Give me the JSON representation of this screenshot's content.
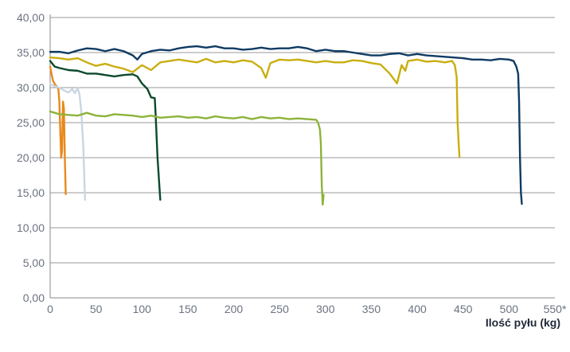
{
  "chart_data": {
    "type": "line",
    "xlabel": "Ilość pyłu (kg)",
    "ylabel": "",
    "xlim": [
      0,
      550
    ],
    "ylim": [
      0,
      40
    ],
    "grid": true,
    "x_ticks": [
      {
        "value": 0,
        "label": "0"
      },
      {
        "value": 50,
        "label": "50"
      },
      {
        "value": 100,
        "label": "100"
      },
      {
        "value": 150,
        "label": "150"
      },
      {
        "value": 200,
        "label": "200"
      },
      {
        "value": 250,
        "label": "250"
      },
      {
        "value": 300,
        "label": "300"
      },
      {
        "value": 350,
        "label": "350"
      },
      {
        "value": 400,
        "label": "400"
      },
      {
        "value": 450,
        "label": "450"
      },
      {
        "value": 500,
        "label": "500"
      },
      {
        "value": 550,
        "label": "550*"
      }
    ],
    "y_ticks": [
      {
        "value": 0,
        "label": "0,00"
      },
      {
        "value": 5,
        "label": "5,00"
      },
      {
        "value": 10,
        "label": "10,00"
      },
      {
        "value": 15,
        "label": "15,00"
      },
      {
        "value": 20,
        "label": "20,00"
      },
      {
        "value": 25,
        "label": "25,00"
      },
      {
        "value": 30,
        "label": "30,00"
      },
      {
        "value": 35,
        "label": "35,00"
      },
      {
        "value": 40,
        "label": "40,00"
      }
    ],
    "series": [
      {
        "color": "#e8891c",
        "points": [
          [
            0,
            33.0
          ],
          [
            3,
            31.0
          ],
          [
            5,
            30.5
          ],
          [
            7,
            30.2
          ],
          [
            9,
            29.8
          ],
          [
            10,
            28.0
          ],
          [
            11,
            24.0
          ],
          [
            12,
            20.0
          ],
          [
            13,
            21.0
          ],
          [
            14,
            28.0
          ],
          [
            15,
            27.0
          ],
          [
            16,
            20.0
          ],
          [
            17,
            14.8
          ]
        ]
      },
      {
        "color": "#c9d6e3",
        "points": [
          [
            0,
            30.5
          ],
          [
            5,
            30.2
          ],
          [
            10,
            30.0
          ],
          [
            15,
            29.6
          ],
          [
            20,
            29.3
          ],
          [
            24,
            29.8
          ],
          [
            27,
            29.2
          ],
          [
            30,
            30.0
          ],
          [
            32,
            29.0
          ],
          [
            34,
            26.5
          ],
          [
            35,
            24.0
          ],
          [
            36,
            22.0
          ],
          [
            37,
            18.0
          ],
          [
            38,
            14.0
          ]
        ]
      },
      {
        "color": "#0b4a2c",
        "points": [
          [
            0,
            33.8
          ],
          [
            5,
            33.0
          ],
          [
            10,
            32.8
          ],
          [
            20,
            32.5
          ],
          [
            30,
            32.4
          ],
          [
            40,
            32.0
          ],
          [
            50,
            32.0
          ],
          [
            60,
            31.8
          ],
          [
            70,
            31.6
          ],
          [
            80,
            31.8
          ],
          [
            90,
            31.9
          ],
          [
            95,
            31.6
          ],
          [
            100,
            30.6
          ],
          [
            106,
            29.8
          ],
          [
            110,
            28.6
          ],
          [
            114,
            28.5
          ],
          [
            115,
            26.0
          ],
          [
            116,
            23.0
          ],
          [
            117,
            20.0
          ],
          [
            118,
            18.0
          ],
          [
            119,
            16.0
          ],
          [
            120,
            14.0
          ]
        ]
      },
      {
        "color": "#8db33a",
        "points": [
          [
            0,
            26.6
          ],
          [
            10,
            26.2
          ],
          [
            20,
            26.1
          ],
          [
            30,
            26.0
          ],
          [
            40,
            26.4
          ],
          [
            50,
            26.0
          ],
          [
            60,
            25.9
          ],
          [
            70,
            26.2
          ],
          [
            80,
            26.1
          ],
          [
            90,
            26.0
          ],
          [
            100,
            25.8
          ],
          [
            110,
            26.0
          ],
          [
            120,
            25.7
          ],
          [
            130,
            25.8
          ],
          [
            140,
            25.9
          ],
          [
            150,
            25.7
          ],
          [
            160,
            25.8
          ],
          [
            170,
            25.6
          ],
          [
            180,
            25.9
          ],
          [
            190,
            25.7
          ],
          [
            200,
            25.6
          ],
          [
            210,
            25.8
          ],
          [
            220,
            25.5
          ],
          [
            230,
            25.8
          ],
          [
            240,
            25.6
          ],
          [
            250,
            25.7
          ],
          [
            260,
            25.5
          ],
          [
            270,
            25.6
          ],
          [
            280,
            25.5
          ],
          [
            290,
            25.4
          ],
          [
            292,
            25.0
          ],
          [
            294,
            24.0
          ],
          [
            295,
            22.0
          ],
          [
            296,
            16.0
          ],
          [
            297,
            13.3
          ],
          [
            298,
            14.7
          ]
        ]
      },
      {
        "color": "#c9ae10",
        "points": [
          [
            0,
            34.3
          ],
          [
            10,
            34.2
          ],
          [
            20,
            34.0
          ],
          [
            30,
            34.2
          ],
          [
            40,
            33.6
          ],
          [
            50,
            33.1
          ],
          [
            60,
            33.4
          ],
          [
            70,
            33.0
          ],
          [
            80,
            32.7
          ],
          [
            90,
            32.2
          ],
          [
            100,
            33.2
          ],
          [
            110,
            32.5
          ],
          [
            120,
            33.6
          ],
          [
            130,
            33.8
          ],
          [
            140,
            34.0
          ],
          [
            150,
            33.8
          ],
          [
            160,
            33.6
          ],
          [
            170,
            34.1
          ],
          [
            180,
            33.6
          ],
          [
            190,
            33.8
          ],
          [
            200,
            33.6
          ],
          [
            210,
            33.9
          ],
          [
            220,
            33.7
          ],
          [
            230,
            32.8
          ],
          [
            235,
            31.4
          ],
          [
            240,
            33.5
          ],
          [
            250,
            34.0
          ],
          [
            260,
            33.9
          ],
          [
            270,
            34.0
          ],
          [
            280,
            33.8
          ],
          [
            290,
            33.6
          ],
          [
            300,
            33.8
          ],
          [
            310,
            33.6
          ],
          [
            320,
            33.6
          ],
          [
            330,
            33.9
          ],
          [
            340,
            33.8
          ],
          [
            350,
            33.5
          ],
          [
            360,
            33.3
          ],
          [
            370,
            32.0
          ],
          [
            378,
            30.6
          ],
          [
            383,
            33.2
          ],
          [
            387,
            32.4
          ],
          [
            390,
            33.8
          ],
          [
            400,
            34.0
          ],
          [
            410,
            33.7
          ],
          [
            420,
            33.8
          ],
          [
            430,
            33.6
          ],
          [
            438,
            33.8
          ],
          [
            441,
            33.2
          ],
          [
            443,
            31.5
          ],
          [
            444,
            25.0
          ],
          [
            445,
            22.5
          ],
          [
            446,
            20.1
          ]
        ]
      },
      {
        "color": "#0f3b63",
        "points": [
          [
            0,
            35.1
          ],
          [
            10,
            35.1
          ],
          [
            20,
            34.9
          ],
          [
            30,
            35.3
          ],
          [
            40,
            35.6
          ],
          [
            50,
            35.5
          ],
          [
            60,
            35.2
          ],
          [
            70,
            35.5
          ],
          [
            80,
            35.2
          ],
          [
            90,
            34.6
          ],
          [
            95,
            34.0
          ],
          [
            100,
            34.8
          ],
          [
            110,
            35.2
          ],
          [
            120,
            35.4
          ],
          [
            130,
            35.3
          ],
          [
            140,
            35.6
          ],
          [
            150,
            35.8
          ],
          [
            160,
            35.9
          ],
          [
            170,
            35.7
          ],
          [
            180,
            35.9
          ],
          [
            190,
            35.6
          ],
          [
            200,
            35.6
          ],
          [
            210,
            35.4
          ],
          [
            220,
            35.5
          ],
          [
            230,
            35.7
          ],
          [
            240,
            35.5
          ],
          [
            250,
            35.6
          ],
          [
            260,
            35.6
          ],
          [
            270,
            35.8
          ],
          [
            280,
            35.6
          ],
          [
            290,
            35.2
          ],
          [
            300,
            35.4
          ],
          [
            310,
            35.2
          ],
          [
            320,
            35.2
          ],
          [
            330,
            35.0
          ],
          [
            340,
            34.8
          ],
          [
            350,
            34.6
          ],
          [
            360,
            34.6
          ],
          [
            370,
            34.8
          ],
          [
            380,
            34.9
          ],
          [
            390,
            34.6
          ],
          [
            400,
            34.8
          ],
          [
            410,
            34.6
          ],
          [
            420,
            34.5
          ],
          [
            430,
            34.4
          ],
          [
            440,
            34.3
          ],
          [
            450,
            34.2
          ],
          [
            460,
            34.0
          ],
          [
            470,
            34.0
          ],
          [
            480,
            33.9
          ],
          [
            490,
            34.1
          ],
          [
            500,
            34.0
          ],
          [
            505,
            33.8
          ],
          [
            508,
            33.0
          ],
          [
            510,
            32.0
          ],
          [
            511,
            28.0
          ],
          [
            512,
            20.0
          ],
          [
            513,
            15.0
          ],
          [
            514,
            13.4
          ]
        ]
      }
    ]
  }
}
